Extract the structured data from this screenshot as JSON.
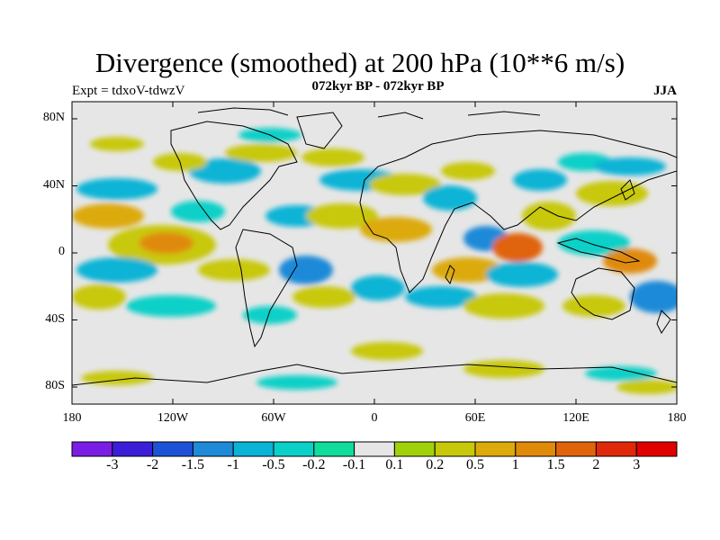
{
  "header": {
    "title": "Divergence (smoothed) at 200 hPa (10**6 m/s)",
    "subtitle": "072kyr BP - 072kyr BP",
    "expt_label": "Expt = tdxoV-tdwzV",
    "season": "JJA"
  },
  "map": {
    "projection": "cylindrical-equidistant",
    "lon_range": [
      -180,
      180
    ],
    "lat_range": [
      -90,
      90
    ],
    "y_ticks": [
      "80N",
      "40N",
      "0",
      "40S",
      "80S"
    ],
    "x_ticks": [
      "180",
      "120W",
      "60W",
      "0",
      "60E",
      "120E",
      "180"
    ],
    "background_color": "#e6e6e6"
  },
  "colorbar": {
    "colors": [
      "#7a1ee6",
      "#3a1ed8",
      "#1e52d6",
      "#1e8ad8",
      "#0ab4d6",
      "#0ad0c8",
      "#10dc9c",
      "#e6e6e6",
      "#a0d20a",
      "#c8c80a",
      "#dcaa0a",
      "#e08a0a",
      "#e0640a",
      "#e0280a",
      "#e00000"
    ],
    "labels": [
      "-3",
      "-2",
      "-1.5",
      "-1",
      "-0.5",
      "-0.2",
      "-0.1",
      "0.1",
      "0.2",
      "0.5",
      "1",
      "1.5",
      "2",
      "3"
    ]
  }
}
